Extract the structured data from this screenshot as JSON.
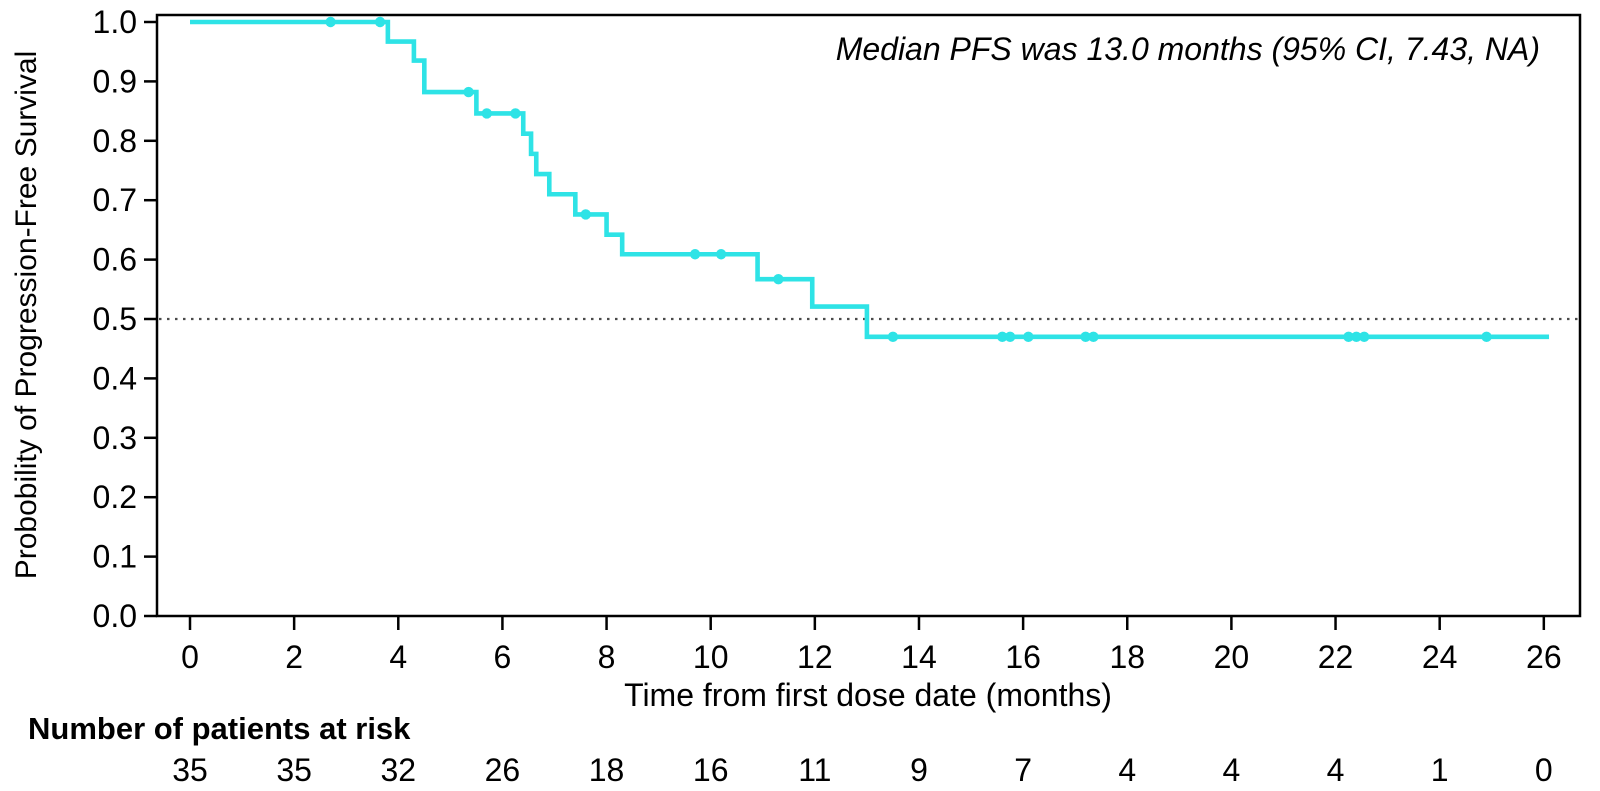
{
  "chart_data": {
    "type": "line",
    "subtype": "kaplan-meier-step-curve",
    "title": "",
    "annotation": "Median PFS was 13.0 months (95% CI, 7.43, NA)",
    "xlabel": "Time from first dose date (months)",
    "ylabel": "Probobility of Progression-Free Survival",
    "xlim": [
      0,
      26.6
    ],
    "ylim": [
      0.0,
      1.0
    ],
    "x_ticks": [
      0,
      2,
      4,
      6,
      8,
      10,
      12,
      14,
      16,
      18,
      20,
      22,
      24,
      26
    ],
    "y_tick_labels": [
      "0.0",
      "0.1",
      "0.2",
      "0.3",
      "0.4",
      "0.5",
      "0.6",
      "0.7",
      "0.8",
      "0.9",
      "1.0"
    ],
    "grid": false,
    "legend": "none",
    "median_reference_line_y": 0.5,
    "curve_color": "#2EE3E6",
    "curve_start": {
      "t": 0,
      "s": 1.0
    },
    "curve_end_time": 26.1,
    "km_steps": [
      {
        "t": 3.8,
        "s": 0.967
      },
      {
        "t": 4.3,
        "s": 0.935
      },
      {
        "t": 4.5,
        "s": 0.882
      },
      {
        "t": 5.5,
        "s": 0.846
      },
      {
        "t": 6.4,
        "s": 0.812
      },
      {
        "t": 6.55,
        "s": 0.778
      },
      {
        "t": 6.65,
        "s": 0.744
      },
      {
        "t": 6.9,
        "s": 0.71
      },
      {
        "t": 7.4,
        "s": 0.676
      },
      {
        "t": 8.0,
        "s": 0.642
      },
      {
        "t": 8.3,
        "s": 0.609
      },
      {
        "t": 10.9,
        "s": 0.567
      },
      {
        "t": 11.95,
        "s": 0.521
      },
      {
        "t": 13.0,
        "s": 0.47
      }
    ],
    "censor_marks": [
      {
        "t": 2.7,
        "s": 1.0
      },
      {
        "t": 3.65,
        "s": 1.0
      },
      {
        "t": 5.35,
        "s": 0.882
      },
      {
        "t": 5.7,
        "s": 0.846
      },
      {
        "t": 6.25,
        "s": 0.846
      },
      {
        "t": 7.6,
        "s": 0.676
      },
      {
        "t": 9.7,
        "s": 0.609
      },
      {
        "t": 10.2,
        "s": 0.609
      },
      {
        "t": 11.3,
        "s": 0.567
      },
      {
        "t": 13.5,
        "s": 0.47
      },
      {
        "t": 15.6,
        "s": 0.47
      },
      {
        "t": 15.75,
        "s": 0.47
      },
      {
        "t": 16.1,
        "s": 0.47
      },
      {
        "t": 17.2,
        "s": 0.47
      },
      {
        "t": 17.35,
        "s": 0.47
      },
      {
        "t": 22.25,
        "s": 0.47
      },
      {
        "t": 22.4,
        "s": 0.47
      },
      {
        "t": 22.55,
        "s": 0.47
      },
      {
        "t": 24.9,
        "s": 0.47
      }
    ]
  },
  "risk_table": {
    "header": "Number of patients at risk",
    "time_points": [
      0,
      2,
      4,
      6,
      8,
      10,
      12,
      14,
      16,
      18,
      20,
      22,
      24,
      26
    ],
    "values": [
      "35",
      "35",
      "32",
      "26",
      "18",
      "16",
      "11",
      "9",
      "7",
      "4",
      "4",
      "4",
      "1",
      "0"
    ]
  },
  "colors": {
    "curve": "#2EE3E6",
    "axis": "#000000",
    "text": "#000000",
    "reference_dotted": "#4a4a4a",
    "background": "#ffffff"
  }
}
